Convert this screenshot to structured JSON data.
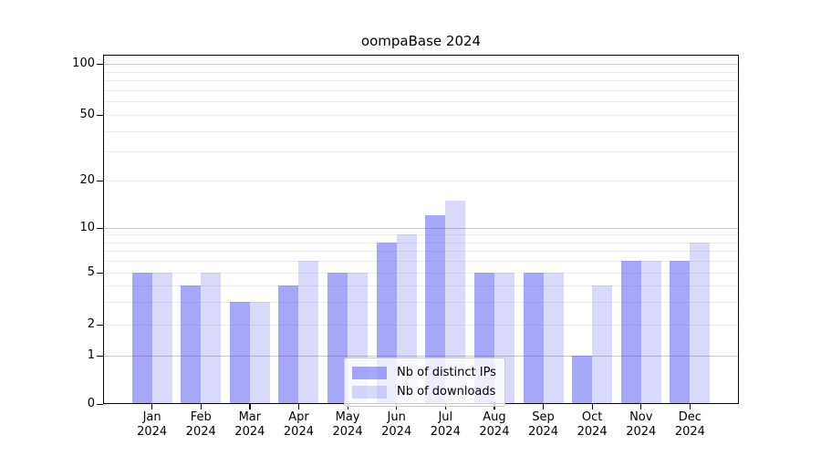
{
  "title": "oompaBase 2024",
  "chart_data": {
    "type": "bar",
    "title": "oompaBase 2024",
    "categories": [
      "Jan",
      "Feb",
      "Mar",
      "Apr",
      "May",
      "Jun",
      "Jul",
      "Aug",
      "Sep",
      "Oct",
      "Nov",
      "Dec"
    ],
    "category_sub": "2024",
    "series": [
      {
        "name": "Nb of distinct IPs",
        "color": "rgba(80,80,240,0.50)",
        "values": [
          5,
          4,
          3,
          4,
          5,
          8,
          12,
          5,
          5,
          1,
          6,
          6
        ]
      },
      {
        "name": "Nb of downloads",
        "color": "rgba(80,80,240,0.22)",
        "values": [
          5,
          5,
          3,
          6,
          5,
          9,
          15,
          5,
          5,
          4,
          6,
          8
        ]
      }
    ],
    "yscale": "log1p",
    "ylim": [
      0,
      113
    ],
    "yticks": [
      0,
      1,
      2,
      5,
      10,
      20,
      50,
      100
    ],
    "major_gridline_values": [
      1,
      10,
      100
    ],
    "minor_gridline_values": [
      2,
      3,
      4,
      5,
      6,
      7,
      8,
      9,
      20,
      30,
      40,
      50,
      60,
      70,
      80,
      90
    ],
    "grid_major_color": "#c8c8c8",
    "grid_minor_color": "#ececec",
    "legend_position": "lower center",
    "grid": "on"
  }
}
